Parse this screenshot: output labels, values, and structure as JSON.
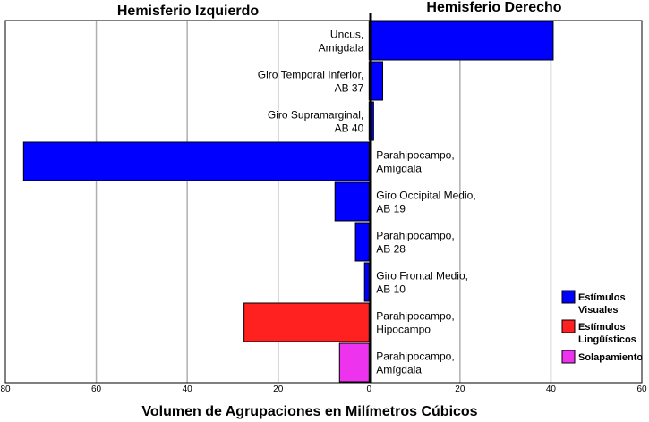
{
  "chart_data": {
    "type": "bar",
    "orientation": "horizontal",
    "titles": {
      "left": "Hemisferio Izquierdo",
      "right": "Hemisferio Derecho"
    },
    "xlabel": "Volumen de Agrupaciones en Milímetros Cúbicos",
    "ylabel": "",
    "xlim": [
      -80,
      60
    ],
    "xticks": [
      -80,
      -60,
      -40,
      -20,
      0,
      20,
      40,
      60
    ],
    "xtick_labels": [
      "80",
      "60",
      "40",
      "20",
      "0",
      "20",
      "40",
      "60"
    ],
    "grid": true,
    "legend_position": "bottom-right",
    "series": [
      {
        "name": "Estímulos Visuales",
        "color": "#0000ff"
      },
      {
        "name": "Estímulos Lingüísticos",
        "color": "#ff2020"
      },
      {
        "name": "Solapamiento",
        "color": "#ee33ee"
      }
    ],
    "bars": [
      {
        "label": [
          "Uncus,",
          "Amígdala"
        ],
        "value": 40.5,
        "series": 0,
        "label_side": "left"
      },
      {
        "label": [
          "Giro Temporal Inferior,",
          "AB 37"
        ],
        "value": 3,
        "series": 0,
        "label_side": "left"
      },
      {
        "label": [
          "Giro Supramarginal,",
          "AB 40"
        ],
        "value": 1,
        "series": 0,
        "label_side": "left"
      },
      {
        "label": [
          "Parahipocampo,",
          "Amígdala"
        ],
        "value": -76,
        "series": 0,
        "label_side": "right"
      },
      {
        "label": [
          "Giro Occipital Medio,",
          "AB 19"
        ],
        "value": -7.5,
        "series": 0,
        "label_side": "right"
      },
      {
        "label": [
          "Parahipocampo,",
          "AB 28"
        ],
        "value": -3,
        "series": 0,
        "label_side": "right"
      },
      {
        "label": [
          "Giro Frontal Medio,",
          "AB 10"
        ],
        "value": -1,
        "series": 0,
        "label_side": "right"
      },
      {
        "label": [
          "Parahipocampo,",
          "Hipocampo"
        ],
        "value": -27.5,
        "series": 1,
        "label_side": "right"
      },
      {
        "label": [
          "Parahipocampo,",
          "Amígdala"
        ],
        "value": -6.5,
        "series": 2,
        "label_side": "right"
      }
    ],
    "legend": [
      {
        "lines": [
          "Estímulos",
          "Visuales"
        ],
        "color": "#0000ff"
      },
      {
        "lines": [
          "Estímulos",
          "Lingüísticos"
        ],
        "color": "#ff2020"
      },
      {
        "lines": [
          "Solapamiento"
        ],
        "color": "#ee33ee"
      }
    ]
  }
}
